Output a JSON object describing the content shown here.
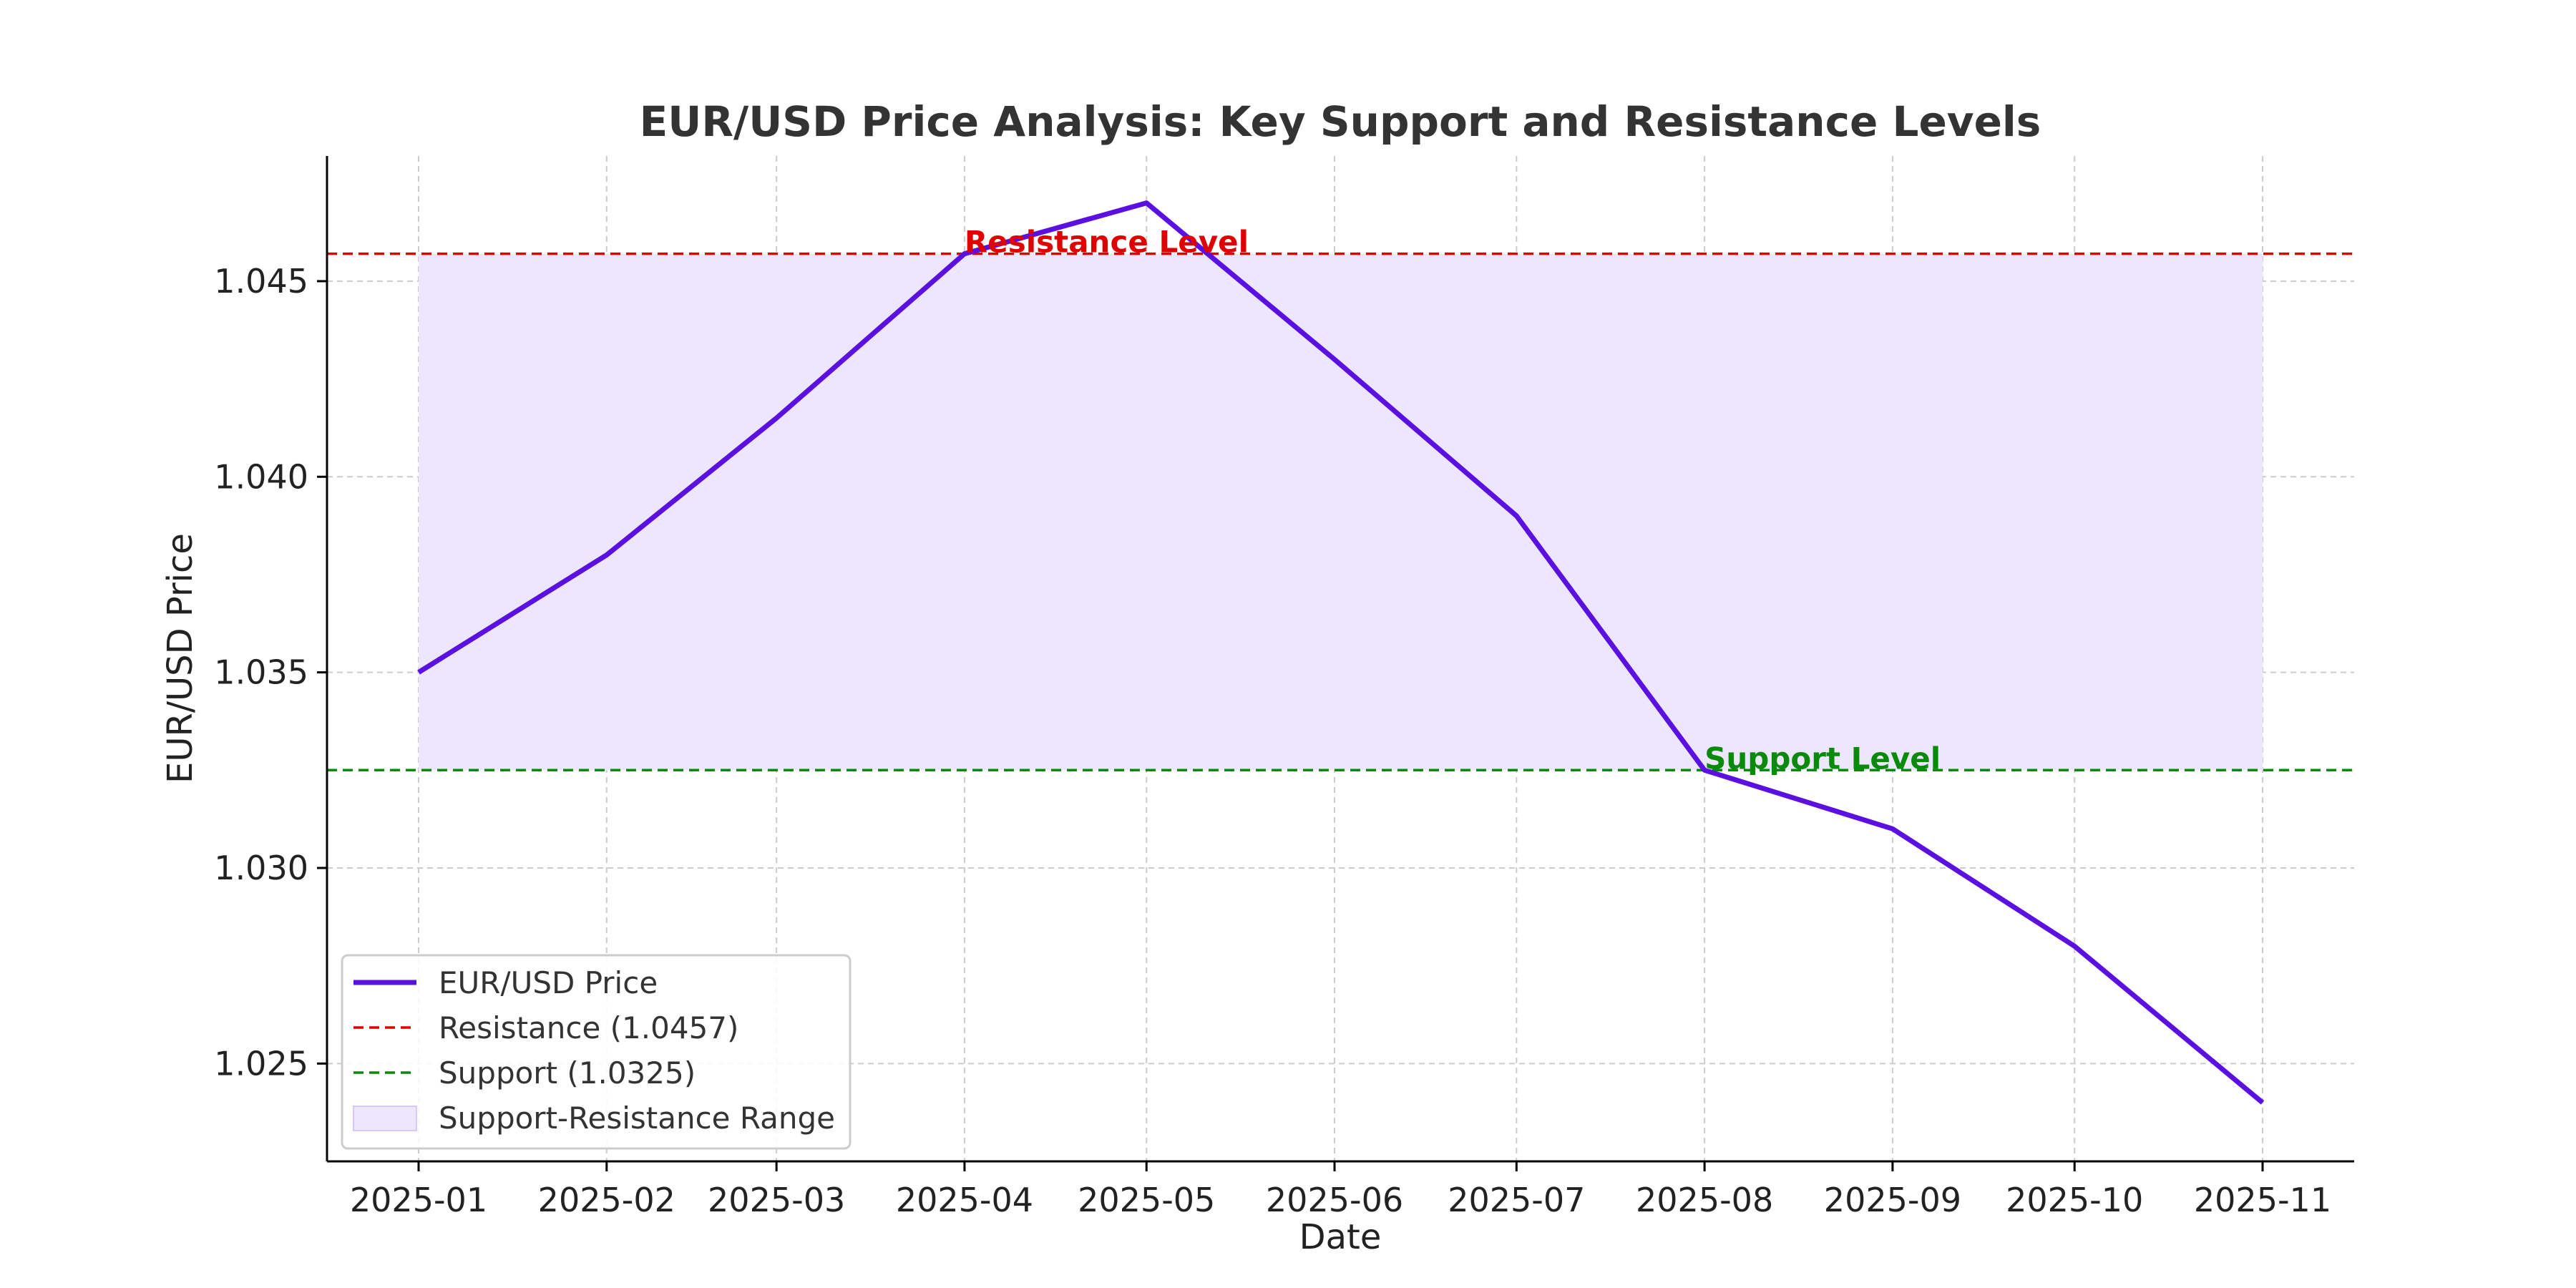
{
  "chart_data": {
    "type": "line",
    "title": "EUR/USD Price Analysis: Key Support and Resistance Levels",
    "xlabel": "Date",
    "ylabel": "EUR/USD Price",
    "categories": [
      "2025-01",
      "2025-02",
      "2025-03",
      "2025-04",
      "2025-05",
      "2025-06",
      "2025-07",
      "2025-08",
      "2025-09",
      "2025-10",
      "2025-11"
    ],
    "x": [
      "2025-01-01",
      "2025-02-01",
      "2025-03-01",
      "2025-04-01",
      "2025-05-01",
      "2025-06-01",
      "2025-07-01",
      "2025-08-01",
      "2025-09-01",
      "2025-10-01",
      "2025-11-01"
    ],
    "series": [
      {
        "name": "EUR/USD Price",
        "color": "#5b0fe0",
        "values": [
          1.035,
          1.038,
          1.0415,
          1.0457,
          1.047,
          1.043,
          1.039,
          1.0325,
          1.031,
          1.028,
          1.024
        ]
      }
    ],
    "resistance": {
      "value": 1.0457,
      "label": "Resistance Level",
      "legend": "Resistance (1.0457)",
      "color": "#e00000"
    },
    "support": {
      "value": 1.0325,
      "label": "Support Level",
      "legend": "Support (1.0325)",
      "color": "#0a8a0a"
    },
    "range": {
      "legend": "Support-Resistance Range",
      "color": "#ede6ff"
    },
    "ylim": [
      1.0225,
      1.0482
    ],
    "yticks": [
      "1.025",
      "1.030",
      "1.035",
      "1.040",
      "1.045"
    ],
    "yticks_values": [
      1.025,
      1.03,
      1.035,
      1.04,
      1.045
    ],
    "grid": true,
    "legend_position": "lower-left"
  }
}
